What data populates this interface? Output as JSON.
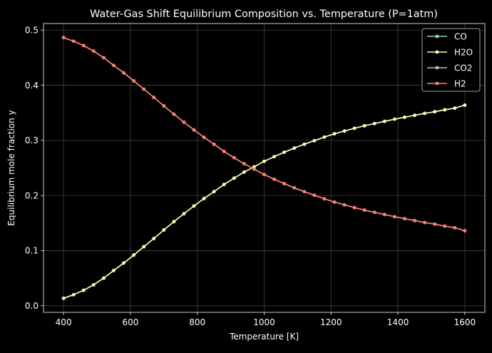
{
  "chart_data": {
    "type": "line",
    "title": "Water-Gas Shift Equilibrium Composition vs. Temperature (P=1atm)",
    "xlabel": "Temperature [K]",
    "ylabel": "Equilibrium mole fraction  y",
    "xlim": [
      340,
      1660
    ],
    "ylim": [
      -0.012,
      0.512
    ],
    "xticks": [
      400,
      600,
      800,
      1000,
      1200,
      1400,
      1600
    ],
    "yticks": [
      0.0,
      0.1,
      0.2,
      0.3,
      0.4,
      0.5
    ],
    "grid": true,
    "legend_position": "top-right",
    "x": [
      400,
      430,
      460,
      490,
      520,
      550,
      580,
      610,
      640,
      670,
      700,
      730,
      760,
      790,
      820,
      850,
      880,
      910,
      940,
      970,
      1000,
      1030,
      1060,
      1090,
      1120,
      1150,
      1180,
      1210,
      1240,
      1270,
      1300,
      1330,
      1360,
      1390,
      1420,
      1450,
      1480,
      1510,
      1540,
      1570,
      1600
    ],
    "series": [
      {
        "name": "CO",
        "color": "#8dd3c7",
        "values": [
          0.0135,
          0.02,
          0.028,
          0.038,
          0.05,
          0.064,
          0.0775,
          0.092,
          0.107,
          0.122,
          0.1375,
          0.1525,
          0.167,
          0.181,
          0.1945,
          0.207,
          0.22,
          0.2315,
          0.2425,
          0.252,
          0.262,
          0.2705,
          0.2785,
          0.286,
          0.293,
          0.2995,
          0.306,
          0.312,
          0.317,
          0.322,
          0.3265,
          0.3305,
          0.3345,
          0.3385,
          0.342,
          0.3455,
          0.349,
          0.352,
          0.3555,
          0.3585,
          0.364
        ]
      },
      {
        "name": "H2O",
        "color": "#ffffb3",
        "values": [
          0.0135,
          0.02,
          0.028,
          0.038,
          0.05,
          0.064,
          0.0775,
          0.092,
          0.107,
          0.122,
          0.1375,
          0.1525,
          0.167,
          0.181,
          0.1945,
          0.207,
          0.22,
          0.2315,
          0.2425,
          0.252,
          0.262,
          0.2705,
          0.2785,
          0.286,
          0.293,
          0.2995,
          0.306,
          0.312,
          0.317,
          0.322,
          0.3265,
          0.3305,
          0.3345,
          0.3385,
          0.342,
          0.3455,
          0.349,
          0.352,
          0.3555,
          0.3585,
          0.364
        ]
      },
      {
        "name": "CO2",
        "color": "#bebada",
        "values": [
          0.4865,
          0.48,
          0.472,
          0.462,
          0.45,
          0.436,
          0.4225,
          0.408,
          0.393,
          0.378,
          0.3625,
          0.3475,
          0.333,
          0.319,
          0.3055,
          0.293,
          0.28,
          0.2685,
          0.2575,
          0.248,
          0.238,
          0.2295,
          0.2215,
          0.214,
          0.207,
          0.2005,
          0.194,
          0.188,
          0.183,
          0.178,
          0.1735,
          0.1695,
          0.1655,
          0.1615,
          0.158,
          0.1545,
          0.151,
          0.148,
          0.1445,
          0.1415,
          0.136
        ]
      },
      {
        "name": "H2",
        "color": "#fb8072",
        "values": [
          0.4865,
          0.48,
          0.472,
          0.462,
          0.45,
          0.436,
          0.4225,
          0.408,
          0.393,
          0.378,
          0.3625,
          0.3475,
          0.333,
          0.319,
          0.3055,
          0.293,
          0.28,
          0.2685,
          0.2575,
          0.248,
          0.238,
          0.2295,
          0.2215,
          0.214,
          0.207,
          0.2005,
          0.194,
          0.188,
          0.183,
          0.178,
          0.1735,
          0.1695,
          0.1655,
          0.1615,
          0.158,
          0.1545,
          0.151,
          0.148,
          0.1445,
          0.1415,
          0.136
        ]
      }
    ]
  }
}
